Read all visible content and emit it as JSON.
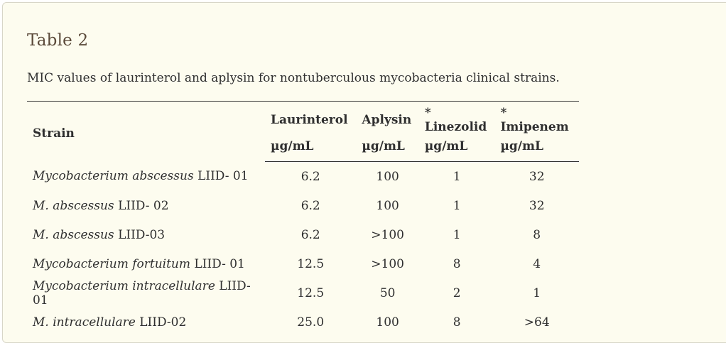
{
  "title": "Table 2",
  "caption": "MIC values of laurinterol and aplysin for nontuberculous mycobacteria clinical strains.",
  "table": {
    "header": {
      "strain": "Strain",
      "columns": [
        {
          "name": "Laurinterol",
          "unit": "µg/mL"
        },
        {
          "name": "Aplysin",
          "unit": "µg/mL"
        },
        {
          "name": "* Linezolid",
          "unit": "µg/mL"
        },
        {
          "name": "* Imipenem",
          "unit": "µg/mL"
        }
      ]
    },
    "rows": [
      {
        "species": "Mycobacterium abscessus",
        "code": " LIID- 01",
        "values": [
          "6.2",
          "100",
          "1",
          "32"
        ]
      },
      {
        "species": "M. abscessus",
        "code": " LIID- 02",
        "values": [
          "6.2",
          "100",
          "1",
          "32"
        ]
      },
      {
        "species": "M. abscessus",
        "code": " LIID-03",
        "values": [
          "6.2",
          ">100",
          "1",
          "8"
        ]
      },
      {
        "species": "Mycobacterium fortuitum",
        "code": " LIID- 01",
        "values": [
          "12.5",
          ">100",
          "8",
          "4"
        ]
      },
      {
        "species": "Mycobacterium intracellulare",
        "code": " LIID-01",
        "values": [
          "12.5",
          "50",
          "2",
          "1"
        ]
      },
      {
        "species": "M. intracellulare",
        "code": " LIID-02",
        "values": [
          "25.0",
          "100",
          "8",
          ">64"
        ]
      }
    ]
  }
}
